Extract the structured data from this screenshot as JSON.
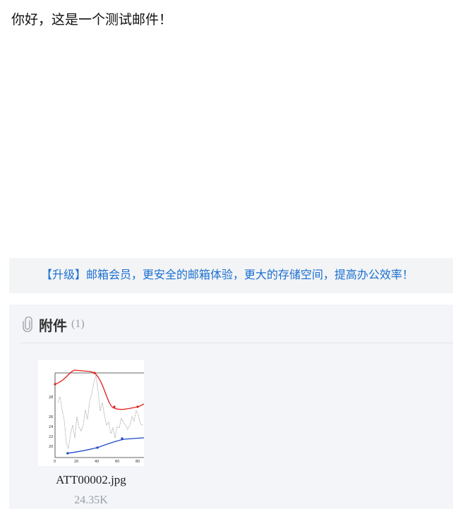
{
  "mail": {
    "body_text": "你好，这是一个测试邮件！"
  },
  "promo": {
    "text": "【升级】邮箱会员，更安全的邮箱体验，更大的存储空间，提高办公效率！",
    "color": "#1a6fd1"
  },
  "attachments": {
    "title": "附件",
    "count": "(1)",
    "icon": "paperclip-icon",
    "items": [
      {
        "name": "ATT00002.jpg",
        "size": "24.35K",
        "thumbnail": {
          "x_ticks": [
            "0",
            "20",
            "40",
            "60",
            "80"
          ],
          "y_ticks": [
            "20",
            "22",
            "24",
            "26",
            "28"
          ],
          "red_color": "#e0201c",
          "blue_color": "#1c46c8",
          "gray_color": "#888888"
        }
      }
    ]
  }
}
